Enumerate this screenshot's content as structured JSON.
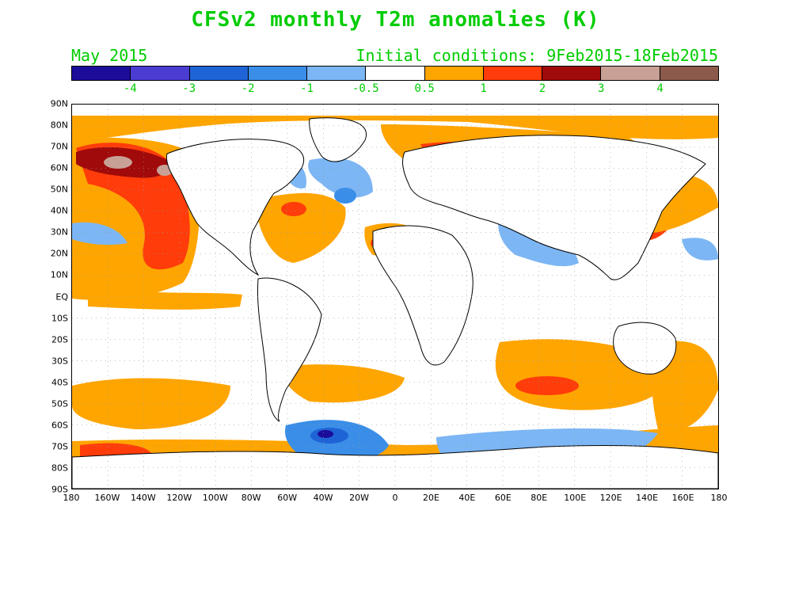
{
  "title": "CFSv2 monthly T2m anomalies (K)",
  "month": "May 2015",
  "initial_conditions": "Initial conditions: 9Feb2015-18Feb2015",
  "colors": {
    "text": "#00cc00",
    "scale": [
      "#1c0c9a",
      "#4b3cd2",
      "#1f64d6",
      "#3a8ee8",
      "#7cb6f4",
      "#ffffff",
      "#ffa500",
      "#ff3c0a",
      "#a00a0a",
      "#c8a096",
      "#8c5a4a"
    ]
  },
  "colorbar_labels": [
    "-4",
    "-3",
    "-2",
    "-1",
    "-0.5",
    "0.5",
    "1",
    "2",
    "3",
    "4"
  ],
  "lat_labels": [
    "90N",
    "80N",
    "70N",
    "60N",
    "50N",
    "40N",
    "30N",
    "20N",
    "10N",
    "EQ",
    "10S",
    "20S",
    "30S",
    "40S",
    "50S",
    "60S",
    "70S",
    "80S",
    "90S"
  ],
  "lon_labels": [
    "180",
    "160W",
    "140W",
    "120W",
    "100W",
    "80W",
    "60W",
    "40W",
    "20W",
    "0",
    "20E",
    "40E",
    "60E",
    "80E",
    "100E",
    "120E",
    "140E",
    "160E",
    "180"
  ]
}
